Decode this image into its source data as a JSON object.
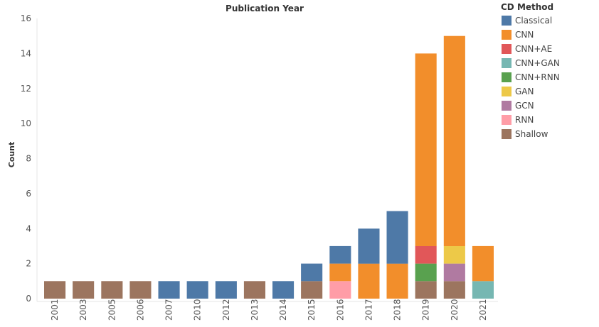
{
  "chart_data": {
    "type": "bar",
    "stacked": true,
    "title": "Publication Year",
    "xlabel": "",
    "ylabel": "Count",
    "ylim": [
      0,
      16
    ],
    "yticks": [
      0,
      2,
      4,
      6,
      8,
      10,
      12,
      14,
      16
    ],
    "categories": [
      "2001",
      "2003",
      "2005",
      "2006",
      "2007",
      "2010",
      "2012",
      "2013",
      "2014",
      "2015",
      "2016",
      "2017",
      "2018",
      "2019",
      "2020",
      "2021"
    ],
    "legend_title": "CD Method",
    "legend_position": "right",
    "stack_order": [
      "Shallow",
      "CNN+GAN",
      "RNN",
      "CNN+RNN",
      "GCN",
      "CNN+AE",
      "GAN",
      "CNN",
      "Classical"
    ],
    "series": [
      {
        "name": "Classical",
        "color": "#4e79a7",
        "values": [
          0,
          0,
          0,
          0,
          1,
          1,
          1,
          0,
          1,
          1,
          1,
          2,
          3,
          0,
          0,
          0
        ]
      },
      {
        "name": "CNN",
        "color": "#f28e2b",
        "values": [
          0,
          0,
          0,
          0,
          0,
          0,
          0,
          0,
          0,
          0,
          1,
          2,
          2,
          11,
          12,
          2
        ]
      },
      {
        "name": "CNN+AE",
        "color": "#e15759",
        "values": [
          0,
          0,
          0,
          0,
          0,
          0,
          0,
          0,
          0,
          0,
          0,
          0,
          0,
          1,
          0,
          0
        ]
      },
      {
        "name": "CNN+GAN",
        "color": "#76b7b2",
        "values": [
          0,
          0,
          0,
          0,
          0,
          0,
          0,
          0,
          0,
          0,
          0,
          0,
          0,
          0,
          0,
          1
        ]
      },
      {
        "name": "CNN+RNN",
        "color": "#59a14f",
        "values": [
          0,
          0,
          0,
          0,
          0,
          0,
          0,
          0,
          0,
          0,
          0,
          0,
          0,
          1,
          0,
          0
        ]
      },
      {
        "name": "GAN",
        "color": "#edc948",
        "values": [
          0,
          0,
          0,
          0,
          0,
          0,
          0,
          0,
          0,
          0,
          0,
          0,
          0,
          0,
          1,
          0
        ]
      },
      {
        "name": "GCN",
        "color": "#b07aa1",
        "values": [
          0,
          0,
          0,
          0,
          0,
          0,
          0,
          0,
          0,
          0,
          0,
          0,
          0,
          0,
          1,
          0
        ]
      },
      {
        "name": "RNN",
        "color": "#ff9da7",
        "values": [
          0,
          0,
          0,
          0,
          0,
          0,
          0,
          0,
          0,
          0,
          1,
          0,
          0,
          0,
          0,
          0
        ]
      },
      {
        "name": "Shallow",
        "color": "#9c755f",
        "values": [
          1,
          1,
          1,
          1,
          0,
          0,
          0,
          1,
          0,
          1,
          0,
          0,
          0,
          1,
          1,
          0
        ]
      }
    ]
  }
}
